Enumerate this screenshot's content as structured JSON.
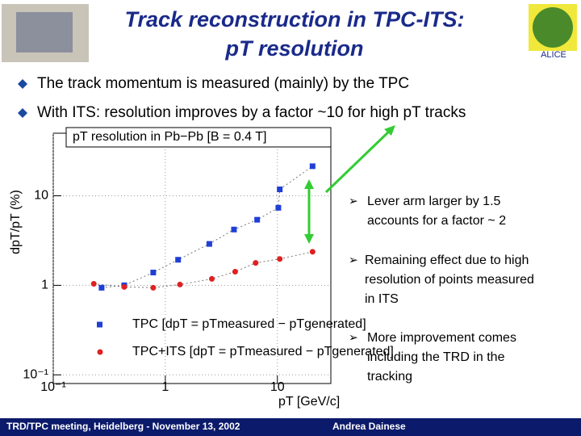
{
  "slide": {
    "title_line1": "Track reconstruction in TPC-ITS:",
    "title_line2": "pT resolution",
    "bullets": [
      "The track momentum is measured (mainly) by the TPC",
      "With ITS: resolution improves by a factor ~10 for high pT tracks"
    ],
    "notes": [
      [
        "Lever arm larger by 1.5",
        "accounts for a factor ~ 2"
      ],
      [
        "Remaining effect due to high",
        "resolution of points measured",
        "in ITS"
      ],
      [
        "More improvement comes",
        "including the TRD in the",
        "tracking"
      ]
    ],
    "footer_left": "TRD/TPC meeting, Heidelberg - November 13, 2002",
    "footer_right": "Andrea Dainese",
    "logo": "ALICE"
  },
  "chart_data": {
    "type": "scatter",
    "title": "pT resolution in Pb−Pb [B = 0.4 T]",
    "x_label": "pT [GeV/c]",
    "y_label": "dpT/pT (%)",
    "xlog": true,
    "ylog": true,
    "grid": true,
    "xlim": [
      0.1,
      30
    ],
    "ylim": [
      0.08,
      50
    ],
    "xticks": [
      {
        "value": 0.1,
        "label": "10⁻¹"
      },
      1,
      10
    ],
    "yticks": [
      {
        "value": 0.1,
        "label": "10⁻¹"
      },
      1,
      10
    ],
    "series": [
      {
        "name": "TPC [dpT = pTmeasured − pTgenerated]",
        "color": "#1f3fd6",
        "marker": "square",
        "x": [
          0.27,
          0.43,
          0.78,
          1.3,
          2.47,
          4.1,
          6.6,
          10.2,
          10.5,
          20.6
        ],
        "values": [
          0.94,
          1.0,
          1.39,
          1.93,
          2.9,
          4.2,
          5.4,
          7.35,
          11.8,
          21.4
        ]
      },
      {
        "name": "TPC+ITS [dpT = pTmeasured − pTgenerated]",
        "color": "#e02020",
        "marker": "circle",
        "x": [
          0.23,
          0.43,
          0.78,
          1.35,
          2.6,
          4.2,
          6.4,
          10.5,
          20.6
        ],
        "values": [
          1.04,
          0.96,
          0.94,
          1.02,
          1.18,
          1.42,
          1.78,
          1.97,
          2.37
        ]
      }
    ]
  }
}
